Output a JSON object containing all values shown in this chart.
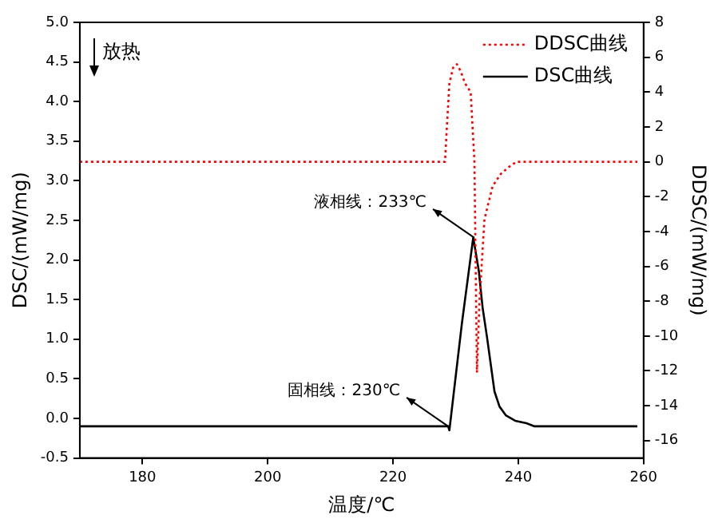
{
  "chart_data": {
    "type": "line",
    "xlabel": "温度/℃",
    "ylabel": "DSC/(mW/mg)",
    "y2label": "DDSC/(mW/mg)",
    "xlim": [
      170,
      260
    ],
    "xticks": [
      180,
      200,
      220,
      240,
      260
    ],
    "ylim": [
      -0.5,
      5
    ],
    "yticks": [
      {
        "value": -0.5,
        "label": "-0.5"
      },
      {
        "value": 0,
        "label": "0.0"
      },
      {
        "value": 0.5,
        "label": "0.5"
      },
      {
        "value": 1,
        "label": "1.0"
      },
      {
        "value": 1.5,
        "label": "1.5"
      },
      {
        "value": 2,
        "label": "2.0"
      },
      {
        "value": 2.5,
        "label": "2.5"
      },
      {
        "value": 3,
        "label": "3.0"
      },
      {
        "value": 3.5,
        "label": "3.5"
      },
      {
        "value": 4,
        "label": "4.0"
      },
      {
        "value": 4.5,
        "label": "4.5"
      },
      {
        "value": 5,
        "label": "5.0"
      }
    ],
    "y2lim": [
      -17,
      8
    ],
    "y2ticks": [
      -16,
      -14,
      -12,
      -10,
      -8,
      -6,
      -4,
      -2,
      0,
      2,
      4,
      6,
      8
    ],
    "grid": false,
    "legend": "top right",
    "marker": "none",
    "series": [
      {
        "name": "DDSC曲线",
        "color": "#ff0000",
        "axis": "y2",
        "line_style": "dotted",
        "x": [
          170,
          228.3,
          228.6,
          229,
          229.6,
          230.2,
          230.8,
          231.5,
          232.4,
          233,
          233.4,
          233.8,
          234.6,
          235.9,
          237.2,
          238.5,
          239.7,
          259
        ],
        "values": [
          0,
          0,
          2,
          4.5,
          5.4,
          5.6,
          5.2,
          4.5,
          4,
          0,
          -12.1,
          -8,
          -3.3,
          -1.4,
          -0.7,
          -0.3,
          0,
          0
        ]
      },
      {
        "name": "DSC曲线",
        "color": "#000000",
        "line_style": "solid",
        "x": [
          170,
          228.8,
          229,
          231,
          232.8,
          233.2,
          233.7,
          234.3,
          235,
          236.2,
          237,
          238,
          239.5,
          241.3,
          242.6,
          259
        ],
        "values": [
          -0.1,
          -0.1,
          -0.15,
          1.2,
          2.28,
          2.1,
          1.86,
          1.4,
          1.03,
          0.34,
          0.15,
          0.04,
          -0.03,
          -0.06,
          -0.1,
          -0.1
        ]
      }
    ],
    "annotations": [
      "放热",
      {
        "text": "液相线：233℃",
        "x": 233,
        "y": 2.28
      },
      {
        "text": "固相线：230℃",
        "x": 228.8,
        "y": -0.1
      }
    ]
  }
}
